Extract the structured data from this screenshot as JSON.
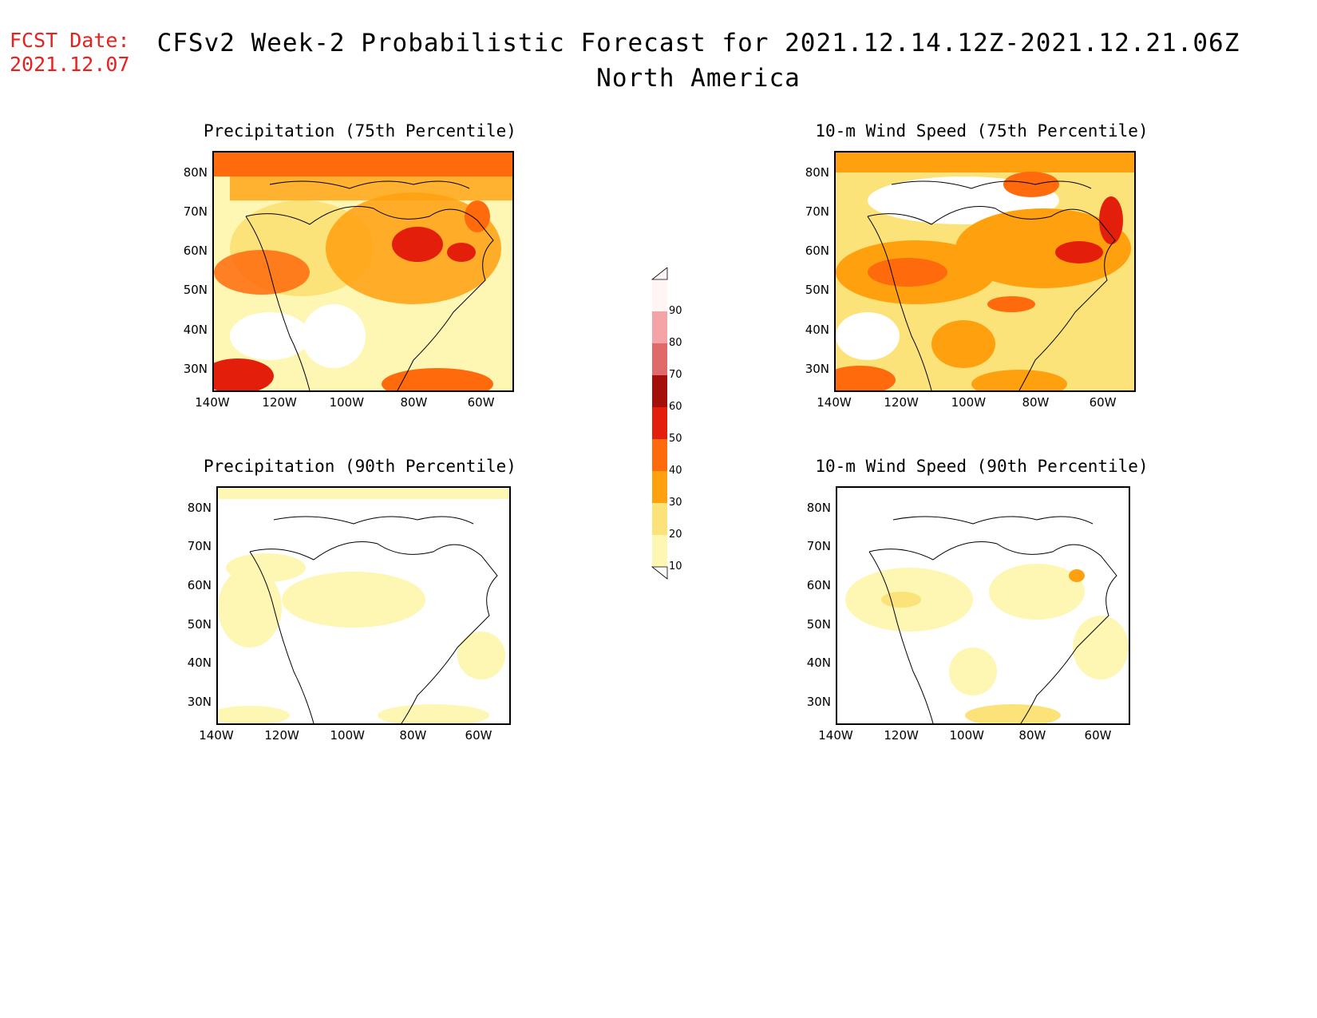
{
  "header": {
    "fcst_label": "FCST Date:",
    "fcst_date": "2021.12.07",
    "title_line1": "CFSv2 Week-2 Probabilistic Forecast for 2021.12.14.12Z-2021.12.21.06Z",
    "title_line2": "North America"
  },
  "panels": [
    {
      "id": "precip75",
      "title": "Precipitation (75th Percentile)",
      "intensity": "high"
    },
    {
      "id": "wind75",
      "title": "10-m Wind Speed (75th Percentile)",
      "intensity": "high"
    },
    {
      "id": "precip90",
      "title": "Precipitation (90th Percentile)",
      "intensity": "low"
    },
    {
      "id": "wind90",
      "title": "10-m Wind Speed (90th Percentile)",
      "intensity": "low"
    }
  ],
  "axes": {
    "lat_labels": [
      "80N",
      "70N",
      "60N",
      "50N",
      "40N",
      "30N"
    ],
    "lon_labels": [
      "140W",
      "120W",
      "100W",
      "80W",
      "60W"
    ]
  },
  "colorbar": {
    "levels": [
      "90",
      "80",
      "70",
      "60",
      "50",
      "40",
      "30",
      "20",
      "10"
    ],
    "colors": [
      "#fff5f5",
      "#f4a3a6",
      "#e06a6a",
      "#a50f0a",
      "#e31f0b",
      "#ff6a0c",
      "#ffa00f",
      "#fbe37a",
      "#fdf7b3"
    ]
  }
}
